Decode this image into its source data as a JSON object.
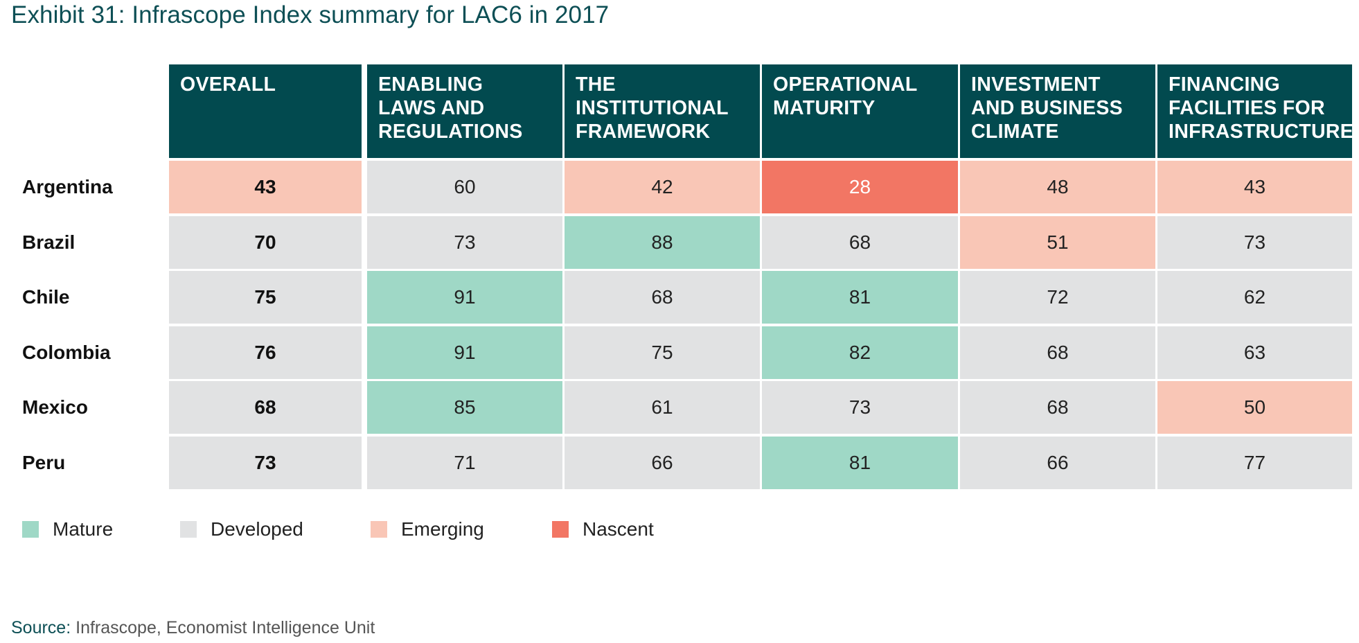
{
  "title": "Exhibit 31: Infrascope Index summary for LAC6 in 2017",
  "colors": {
    "header_bg": "#024a4f",
    "mature": "#9fd8c6",
    "developed": "#e1e2e3",
    "emerging": "#f9c6b6",
    "nascent": "#f27664"
  },
  "chart_data": {
    "type": "table",
    "columns": [
      [
        "OVERALL"
      ],
      [
        "ENABLING",
        "LAWS AND",
        "REGULATIONS"
      ],
      [
        "THE",
        "INSTITUTIONAL",
        "FRAMEWORK"
      ],
      [
        "OPERATIONAL",
        "MATURITY"
      ],
      [
        "INVESTMENT",
        "AND BUSINESS",
        "CLIMATE"
      ],
      [
        "FINANCING",
        "FACILITIES FOR",
        "INFRASTRUCTURE"
      ]
    ],
    "rows": [
      {
        "country": "Argentina",
        "values": [
          43,
          60,
          42,
          28,
          48,
          43
        ],
        "levels": [
          "emerging",
          "developed",
          "emerging",
          "nascent",
          "emerging",
          "emerging"
        ]
      },
      {
        "country": "Brazil",
        "values": [
          70,
          73,
          88,
          68,
          51,
          73
        ],
        "levels": [
          "developed",
          "developed",
          "mature",
          "developed",
          "emerging",
          "developed"
        ]
      },
      {
        "country": "Chile",
        "values": [
          75,
          91,
          68,
          81,
          72,
          62
        ],
        "levels": [
          "developed",
          "mature",
          "developed",
          "mature",
          "developed",
          "developed"
        ]
      },
      {
        "country": "Colombia",
        "values": [
          76,
          91,
          75,
          82,
          68,
          63
        ],
        "levels": [
          "developed",
          "mature",
          "developed",
          "mature",
          "developed",
          "developed"
        ]
      },
      {
        "country": "Mexico",
        "values": [
          68,
          85,
          61,
          73,
          68,
          50
        ],
        "levels": [
          "developed",
          "mature",
          "developed",
          "developed",
          "developed",
          "emerging"
        ]
      },
      {
        "country": "Peru",
        "values": [
          73,
          71,
          66,
          81,
          66,
          77
        ],
        "levels": [
          "developed",
          "developed",
          "developed",
          "mature",
          "developed",
          "developed"
        ]
      }
    ],
    "legend": [
      {
        "key": "mature",
        "label": "Mature"
      },
      {
        "key": "developed",
        "label": "Developed"
      },
      {
        "key": "emerging",
        "label": "Emerging"
      },
      {
        "key": "nascent",
        "label": "Nascent"
      }
    ]
  },
  "source": {
    "label": "Source:",
    "text": " Infrascope, Economist Intelligence Unit"
  }
}
